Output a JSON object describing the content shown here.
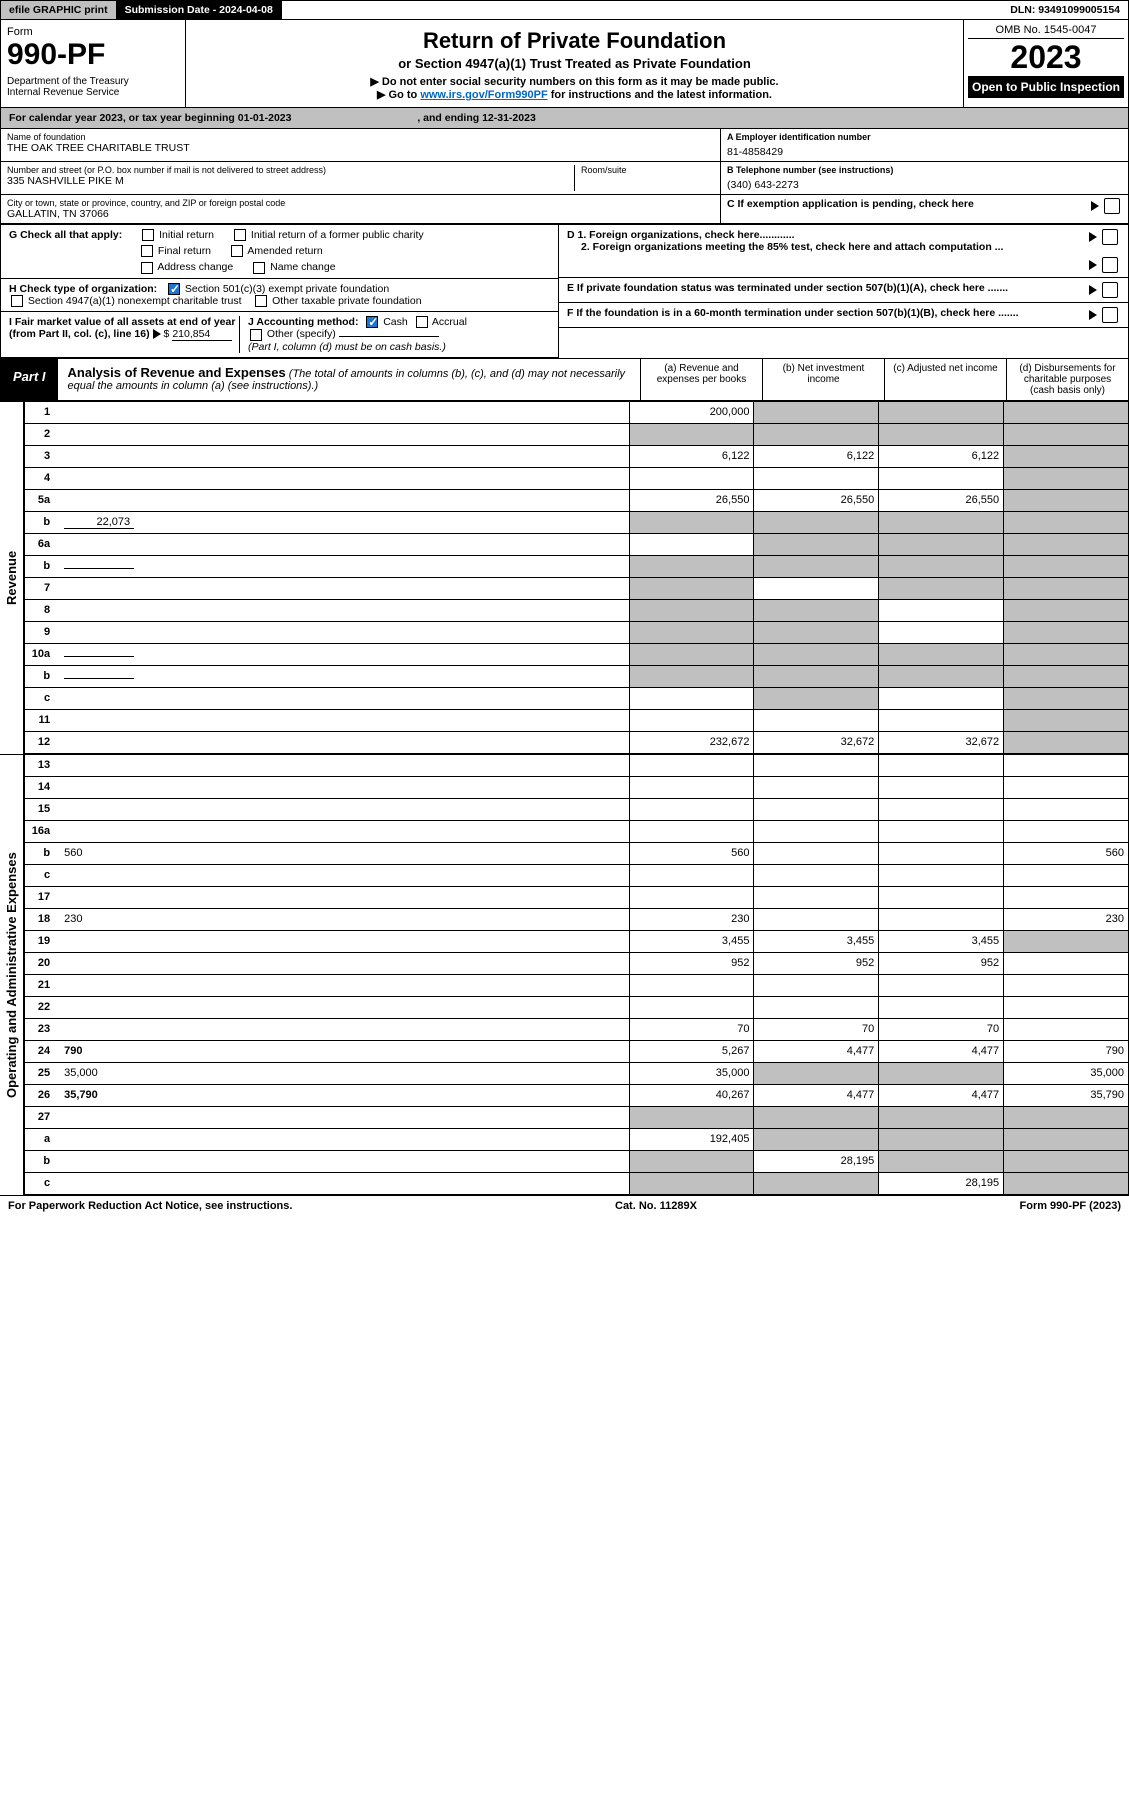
{
  "topbar": {
    "efile": "efile GRAPHIC print",
    "sub_label": "Submission Date - 2024-04-08",
    "dln": "DLN: 93491099005154"
  },
  "header": {
    "form_word": "Form",
    "form_num": "990-PF",
    "dept": "Department of the Treasury\nInternal Revenue Service",
    "title": "Return of Private Foundation",
    "subtitle": "or Section 4947(a)(1) Trust Treated as Private Foundation",
    "instr1": "▶ Do not enter social security numbers on this form as it may be made public.",
    "instr2_pre": "▶ Go to ",
    "instr2_link": "www.irs.gov/Form990PF",
    "instr2_post": " for instructions and the latest information.",
    "omb": "OMB No. 1545-0047",
    "year": "2023",
    "open": "Open to Public Inspection"
  },
  "cal": {
    "text_a": "For calendar year 2023, or tax year beginning 01-01-2023",
    "text_b": ", and ending 12-31-2023"
  },
  "ident": {
    "name_lbl": "Name of foundation",
    "name": "THE OAK TREE CHARITABLE TRUST",
    "addr_lbl": "Number and street (or P.O. box number if mail is not delivered to street address)",
    "addr": "335 NASHVILLE PIKE M",
    "room_lbl": "Room/suite",
    "city_lbl": "City or town, state or province, country, and ZIP or foreign postal code",
    "city": "GALLATIN, TN  37066",
    "a_lbl": "A Employer identification number",
    "a_val": "81-4858429",
    "b_lbl": "B Telephone number (see instructions)",
    "b_val": "(340) 643-2273",
    "c_lbl": "C If exemption application is pending, check here"
  },
  "checks": {
    "g_lbl": "G Check all that apply:",
    "g1": "Initial return",
    "g2": "Initial return of a former public charity",
    "g3": "Final return",
    "g4": "Amended return",
    "g5": "Address change",
    "g6": "Name change",
    "h_lbl": "H Check type of organization:",
    "h1": "Section 501(c)(3) exempt private foundation",
    "h2": "Section 4947(a)(1) nonexempt charitable trust",
    "h3": "Other taxable private foundation",
    "i_lbl": "I Fair market value of all assets at end of year (from Part II, col. (c), line 16)",
    "i_val": "210,854",
    "j_lbl": "J Accounting method:",
    "j1": "Cash",
    "j2": "Accrual",
    "j3": "Other (specify)",
    "j_note": "(Part I, column (d) must be on cash basis.)",
    "d1": "D 1. Foreign organizations, check here............",
    "d2": "2. Foreign organizations meeting the 85% test, check here and attach computation ...",
    "e": "E  If private foundation status was terminated under section 507(b)(1)(A), check here .......",
    "f": "F  If the foundation is in a 60-month termination under section 507(b)(1)(B), check here .......",
    "arrow": "▶"
  },
  "part1": {
    "tag": "Part I",
    "title": "Analysis of Revenue and Expenses",
    "note": "(The total of amounts in columns (b), (c), and (d) may not necessarily equal the amounts in column (a) (see instructions).)",
    "col_a": "(a)   Revenue and expenses per books",
    "col_b": "(b)   Net investment income",
    "col_c": "(c)   Adjusted net income",
    "col_d": "(d)   Disbursements for charitable purposes (cash basis only)"
  },
  "side": {
    "rev": "Revenue",
    "opx": "Operating and Administrative Expenses"
  },
  "rows": [
    {
      "n": "1",
      "d": "",
      "a": "200,000",
      "b": "",
      "c": "",
      "gb": true,
      "gc": true,
      "gd": true
    },
    {
      "n": "2",
      "d": "",
      "a": "",
      "b": "",
      "c": "",
      "ga": true,
      "gb": true,
      "gc": true,
      "gd": true
    },
    {
      "n": "3",
      "d": "",
      "a": "6,122",
      "b": "6,122",
      "c": "6,122",
      "gd": true
    },
    {
      "n": "4",
      "d": "",
      "a": "",
      "b": "",
      "c": "",
      "gd": true
    },
    {
      "n": "5a",
      "d": "",
      "a": "26,550",
      "b": "26,550",
      "c": "26,550",
      "gd": true
    },
    {
      "n": "b",
      "d": "",
      "inline": "22,073",
      "a": "",
      "b": "",
      "c": "",
      "ga": true,
      "gb": true,
      "gc": true,
      "gd": true
    },
    {
      "n": "6a",
      "d": "",
      "a": "",
      "b": "",
      "c": "",
      "gb": true,
      "gc": true,
      "gd": true
    },
    {
      "n": "b",
      "d": "",
      "inline": "",
      "a": "",
      "b": "",
      "c": "",
      "ga": true,
      "gb": true,
      "gc": true,
      "gd": true
    },
    {
      "n": "7",
      "d": "",
      "a": "",
      "b": "",
      "c": "",
      "ga": true,
      "gc": true,
      "gd": true
    },
    {
      "n": "8",
      "d": "",
      "a": "",
      "b": "",
      "c": "",
      "ga": true,
      "gb": true,
      "gd": true
    },
    {
      "n": "9",
      "d": "",
      "a": "",
      "b": "",
      "c": "",
      "ga": true,
      "gb": true,
      "gd": true
    },
    {
      "n": "10a",
      "d": "",
      "inline": "",
      "a": "",
      "b": "",
      "c": "",
      "ga": true,
      "gb": true,
      "gc": true,
      "gd": true
    },
    {
      "n": "b",
      "d": "",
      "inline": "",
      "a": "",
      "b": "",
      "c": "",
      "ga": true,
      "gb": true,
      "gc": true,
      "gd": true
    },
    {
      "n": "c",
      "d": "",
      "a": "",
      "b": "",
      "c": "",
      "gb": true,
      "gd": true
    },
    {
      "n": "11",
      "d": "",
      "a": "",
      "b": "",
      "c": "",
      "gd": true
    },
    {
      "n": "12",
      "d": "",
      "bold": true,
      "a": "232,672",
      "b": "32,672",
      "c": "32,672",
      "gd": true
    }
  ],
  "rows2": [
    {
      "n": "13",
      "d": "",
      "a": "",
      "b": "",
      "c": ""
    },
    {
      "n": "14",
      "d": "",
      "a": "",
      "b": "",
      "c": ""
    },
    {
      "n": "15",
      "d": "",
      "a": "",
      "b": "",
      "c": ""
    },
    {
      "n": "16a",
      "d": "",
      "a": "",
      "b": "",
      "c": ""
    },
    {
      "n": "b",
      "d": "560",
      "a": "560",
      "b": "",
      "c": ""
    },
    {
      "n": "c",
      "d": "",
      "a": "",
      "b": "",
      "c": ""
    },
    {
      "n": "17",
      "d": "",
      "a": "",
      "b": "",
      "c": ""
    },
    {
      "n": "18",
      "d": "230",
      "a": "230",
      "b": "",
      "c": ""
    },
    {
      "n": "19",
      "d": "",
      "a": "3,455",
      "b": "3,455",
      "c": "3,455",
      "gd": true
    },
    {
      "n": "20",
      "d": "",
      "a": "952",
      "b": "952",
      "c": "952"
    },
    {
      "n": "21",
      "d": "",
      "a": "",
      "b": "",
      "c": ""
    },
    {
      "n": "22",
      "d": "",
      "a": "",
      "b": "",
      "c": ""
    },
    {
      "n": "23",
      "d": "",
      "a": "70",
      "b": "70",
      "c": "70"
    },
    {
      "n": "24",
      "d": "790",
      "bold": true,
      "a": "5,267",
      "b": "4,477",
      "c": "4,477"
    },
    {
      "n": "25",
      "d": "35,000",
      "a": "35,000",
      "b": "",
      "c": "",
      "gb": true,
      "gc": true
    },
    {
      "n": "26",
      "d": "35,790",
      "bold": true,
      "a": "40,267",
      "b": "4,477",
      "c": "4,477"
    },
    {
      "n": "27",
      "d": "",
      "a": "",
      "b": "",
      "c": "",
      "ga": true,
      "gb": true,
      "gc": true,
      "gd": true
    },
    {
      "n": "a",
      "d": "",
      "bold": true,
      "a": "192,405",
      "b": "",
      "c": "",
      "gb": true,
      "gc": true,
      "gd": true
    },
    {
      "n": "b",
      "d": "",
      "bold": true,
      "a": "",
      "b": "28,195",
      "c": "",
      "ga": true,
      "gc": true,
      "gd": true
    },
    {
      "n": "c",
      "d": "",
      "bold": true,
      "a": "",
      "b": "",
      "c": "28,195",
      "ga": true,
      "gb": true,
      "gd": true
    }
  ],
  "footer": {
    "left": "For Paperwork Reduction Act Notice, see instructions.",
    "mid": "Cat. No. 11289X",
    "right": "Form 990-PF (2023)"
  }
}
